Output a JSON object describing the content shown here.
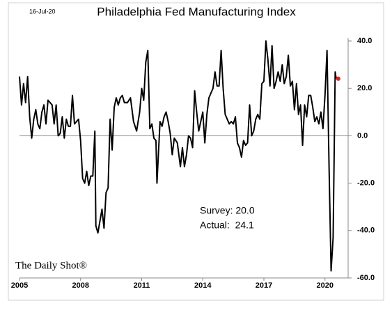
{
  "chart_data": {
    "type": "line",
    "title": "Philadelphia Fed Manufacturing Index",
    "date_label": "16-Jul-20",
    "source": "The Daily Shot®",
    "annotations": [
      "Survey: 20.0",
      "Actual:  24.1"
    ],
    "color": "#000000",
    "marker_color": "#e02020",
    "x": [
      2005.0,
      2005.1,
      2005.2,
      2005.3,
      2005.4,
      2005.5,
      2005.6,
      2005.7,
      2005.8,
      2005.9,
      2006.0,
      2006.1,
      2006.2,
      2006.3,
      2006.4,
      2006.5,
      2006.6,
      2006.7,
      2006.8,
      2006.9,
      2007.0,
      2007.1,
      2007.2,
      2007.3,
      2007.4,
      2007.5,
      2007.6,
      2007.7,
      2007.8,
      2007.9,
      2008.0,
      2008.1,
      2008.2,
      2008.3,
      2008.4,
      2008.5,
      2008.6,
      2008.7,
      2008.75,
      2008.85,
      2008.95,
      2009.05,
      2009.15,
      2009.25,
      2009.35,
      2009.45,
      2009.55,
      2009.65,
      2009.75,
      2009.85,
      2009.95,
      2010.05,
      2010.15,
      2010.3,
      2010.45,
      2010.6,
      2010.75,
      2010.9,
      2011.0,
      2011.1,
      2011.2,
      2011.3,
      2011.4,
      2011.5,
      2011.6,
      2011.7,
      2011.75,
      2011.9,
      2012.0,
      2012.1,
      2012.2,
      2012.3,
      2012.4,
      2012.5,
      2012.6,
      2012.75,
      2012.9,
      2013.0,
      2013.1,
      2013.2,
      2013.3,
      2013.4,
      2013.5,
      2013.6,
      2013.7,
      2013.8,
      2013.9,
      2014.0,
      2014.1,
      2014.2,
      2014.3,
      2014.4,
      2014.5,
      2014.6,
      2014.7,
      2014.8,
      2014.9,
      2015.0,
      2015.1,
      2015.2,
      2015.3,
      2015.4,
      2015.5,
      2015.6,
      2015.7,
      2015.8,
      2015.9,
      2016.0,
      2016.1,
      2016.2,
      2016.3,
      2016.4,
      2016.5,
      2016.6,
      2016.7,
      2016.8,
      2016.9,
      2017.0,
      2017.1,
      2017.2,
      2017.3,
      2017.4,
      2017.5,
      2017.6,
      2017.7,
      2017.8,
      2017.9,
      2018.0,
      2018.1,
      2018.2,
      2018.3,
      2018.4,
      2018.5,
      2018.6,
      2018.7,
      2018.8,
      2018.9,
      2019.0,
      2019.1,
      2019.2,
      2019.3,
      2019.4,
      2019.5,
      2019.6,
      2019.7,
      2019.8,
      2019.9,
      2020.0,
      2020.1,
      2020.2,
      2020.3,
      2020.4,
      2020.5,
      2020.55
    ],
    "values": [
      25,
      13,
      22,
      14,
      25,
      8,
      -1,
      7,
      11,
      5,
      3,
      10,
      13,
      5,
      15,
      14,
      13,
      5,
      13,
      0,
      1,
      8,
      -1,
      7,
      4,
      4,
      17,
      5,
      6,
      7,
      -2,
      -18,
      -20,
      -15,
      -21,
      -17,
      -17,
      2,
      -38,
      -41,
      -36,
      -31,
      -39,
      -24,
      -22,
      7,
      -6,
      12,
      16,
      13,
      16,
      17,
      14,
      14,
      16,
      6,
      2,
      10,
      20,
      15,
      31,
      36,
      3,
      5,
      -1,
      -2,
      -20,
      6,
      4,
      8,
      10,
      6,
      1,
      -8,
      -1,
      -3,
      -13,
      -5,
      -13,
      -8,
      0,
      -1,
      -5,
      19,
      10,
      2,
      6,
      10,
      -3,
      9,
      16,
      18,
      20,
      27,
      21,
      21,
      36,
      20,
      9,
      7,
      5,
      6,
      5,
      8,
      -3,
      -5,
      -9,
      -2,
      -4,
      -3,
      13,
      0,
      2,
      7,
      9,
      7,
      22,
      23,
      40,
      32,
      21,
      38,
      20,
      23,
      27,
      23,
      30,
      22,
      25,
      34,
      21,
      23,
      11,
      22,
      9,
      13,
      -4,
      13,
      8,
      17,
      17,
      12,
      6,
      8,
      5,
      10,
      3,
      17,
      36,
      -13,
      -57,
      -43,
      27,
      24.1
    ],
    "xlim": [
      2005,
      2021
    ],
    "xticks": [
      2005,
      2008,
      2011,
      2014,
      2017,
      2020
    ],
    "ylim": [
      -60,
      40
    ],
    "yticks": [
      {
        "value": -60,
        "label": "-60.0"
      },
      {
        "value": -40,
        "label": "-40.0"
      },
      {
        "value": -20,
        "label": "-20.0"
      },
      {
        "value": 0,
        "label": "0.0"
      },
      {
        "value": 20,
        "label": "20.0"
      },
      {
        "value": 40,
        "label": "40.0"
      }
    ]
  }
}
